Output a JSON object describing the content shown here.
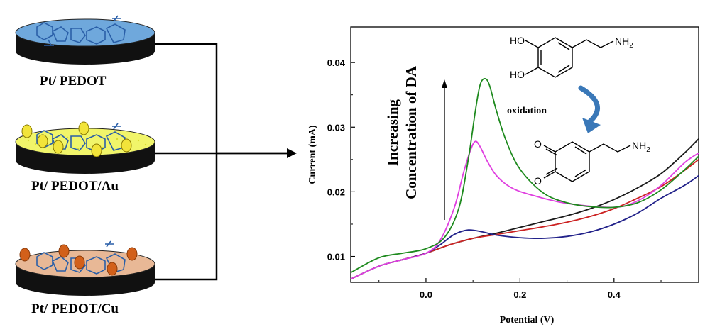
{
  "electrodes": [
    {
      "label": "Pt/ PEDOT",
      "surface_color": "#6fa8dc",
      "dot_color": ""
    },
    {
      "label": "Pt/ PEDOT/Au",
      "surface_color": "#f1f56a",
      "dot_color": "#f2e43a"
    },
    {
      "label": "Pt/ PEDOT/Cu",
      "surface_color": "#e8b896",
      "dot_color": "#d2601a"
    }
  ],
  "annotation": {
    "line1": "Increasing",
    "line2": "Concentration of DA"
  },
  "reaction": {
    "reactant_ho_top": "HO",
    "reactant_ho_bottom": "HO",
    "amine": "NH",
    "amine_sub": "2",
    "arrow_label": "oxidation",
    "product_o_top": "O",
    "product_o_bottom": "O",
    "product_amine": "NH",
    "product_amine_sub": "2",
    "arrow_color": "#3a78b8"
  },
  "chart_data": {
    "type": "line",
    "xlabel": "Potential (V)",
    "ylabel": "Current (mA)",
    "xlim": [
      -0.16,
      0.58
    ],
    "ylim": [
      0.006,
      0.0455
    ],
    "xticks": [
      0.0,
      0.2,
      0.4
    ],
    "yticks": [
      0.01,
      0.02,
      0.03,
      0.04
    ],
    "xtick_labels": [
      "0.0",
      "0.2",
      "0.4"
    ],
    "ytick_labels": [
      "0.01",
      "0.02",
      "0.03",
      "0.04"
    ],
    "series": [
      {
        "color": "#1a1a1a",
        "x": [
          -0.16,
          -0.1,
          -0.05,
          0.0,
          0.05,
          0.1,
          0.15,
          0.2,
          0.25,
          0.3,
          0.35,
          0.4,
          0.45,
          0.5,
          0.55,
          0.58
        ],
        "y": [
          0.0065,
          0.0085,
          0.0095,
          0.0105,
          0.0118,
          0.0128,
          0.0136,
          0.0145,
          0.0154,
          0.0163,
          0.0174,
          0.0188,
          0.0206,
          0.0228,
          0.026,
          0.0282
        ]
      },
      {
        "color": "#cc2222",
        "x": [
          -0.16,
          -0.1,
          -0.05,
          0.0,
          0.05,
          0.1,
          0.15,
          0.2,
          0.25,
          0.3,
          0.35,
          0.4,
          0.45,
          0.5,
          0.55,
          0.58
        ],
        "y": [
          0.0065,
          0.0085,
          0.0095,
          0.0105,
          0.0118,
          0.0128,
          0.0134,
          0.014,
          0.0146,
          0.0153,
          0.0162,
          0.0174,
          0.019,
          0.0208,
          0.0233,
          0.025
        ]
      },
      {
        "color": "#22228a",
        "x": [
          -0.16,
          -0.1,
          -0.05,
          0.0,
          0.03,
          0.06,
          0.09,
          0.12,
          0.15,
          0.2,
          0.25,
          0.3,
          0.35,
          0.4,
          0.45,
          0.5,
          0.55,
          0.58
        ],
        "y": [
          0.0065,
          0.0085,
          0.0095,
          0.0105,
          0.0118,
          0.0134,
          0.0141,
          0.0138,
          0.0133,
          0.0129,
          0.0128,
          0.0131,
          0.0138,
          0.015,
          0.0167,
          0.019,
          0.021,
          0.0225
        ]
      },
      {
        "color": "#e040e0",
        "x": [
          -0.16,
          -0.1,
          -0.05,
          0.0,
          0.03,
          0.06,
          0.08,
          0.095,
          0.105,
          0.115,
          0.13,
          0.15,
          0.18,
          0.22,
          0.3,
          0.4,
          0.45,
          0.5,
          0.55,
          0.58
        ],
        "y": [
          0.0065,
          0.0085,
          0.0095,
          0.0105,
          0.0125,
          0.0175,
          0.023,
          0.0265,
          0.0278,
          0.027,
          0.0248,
          0.0225,
          0.0207,
          0.0196,
          0.0182,
          0.0176,
          0.0186,
          0.021,
          0.0245,
          0.026
        ]
      },
      {
        "color": "#1e8a1e",
        "x": [
          -0.16,
          -0.1,
          -0.05,
          0.0,
          0.04,
          0.07,
          0.09,
          0.105,
          0.115,
          0.125,
          0.135,
          0.15,
          0.17,
          0.2,
          0.25,
          0.3,
          0.35,
          0.4,
          0.45,
          0.5,
          0.55,
          0.58
        ],
        "y": [
          0.0075,
          0.0098,
          0.0105,
          0.0112,
          0.013,
          0.0175,
          0.025,
          0.0325,
          0.0365,
          0.0375,
          0.0365,
          0.0325,
          0.028,
          0.0235,
          0.0198,
          0.0183,
          0.0177,
          0.0176,
          0.0183,
          0.0203,
          0.0234,
          0.0255
        ]
      }
    ]
  }
}
